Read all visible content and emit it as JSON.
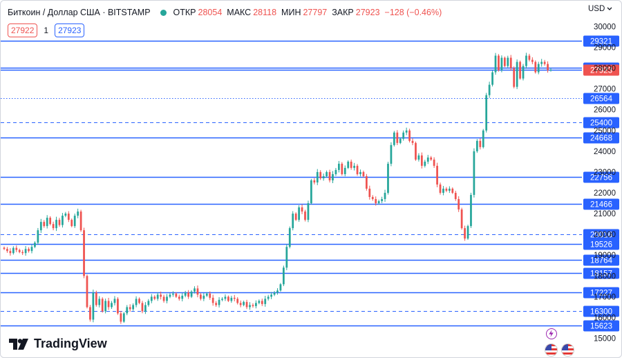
{
  "header": {
    "symbol_title": "Биткоин / Доллар США · BITSTAMP",
    "open_label": "ОТКР",
    "open_value": "28054",
    "high_label": "МАКС",
    "high_value": "28118",
    "low_label": "МИН",
    "low_value": "27797",
    "close_label": "ЗАКР",
    "close_value": "27923",
    "change_value": "−128 (−0.46%)"
  },
  "trade": {
    "sell_price": "27922",
    "spread": "1",
    "buy_price": "27923"
  },
  "axis": {
    "currency": "USD"
  },
  "brand": {
    "name": "TradingView"
  },
  "colors": {
    "up": "#26a69a",
    "down": "#ef5350",
    "level_line": "#2962ff",
    "price_line": "#2962ff"
  },
  "chart_data": {
    "type": "candlestick",
    "ylim": [
      14500,
      30500
    ],
    "y_ticks": [
      "15000",
      "16000",
      "17000",
      "18000",
      "19000",
      "20000",
      "21000",
      "22000",
      "23000",
      "24000",
      "25000",
      "26000",
      "27000",
      "28000",
      "29000",
      "30000"
    ],
    "current_price": "27923",
    "levels": [
      {
        "price": 29321,
        "label": "29321",
        "style": "solid"
      },
      {
        "price": 28003,
        "label": "28003",
        "style": "solid"
      },
      {
        "price": 26564,
        "label": "26564",
        "style": "dotted"
      },
      {
        "price": 25400,
        "label": "25400",
        "style": "dashed"
      },
      {
        "price": 24668,
        "label": "24668",
        "style": "solid"
      },
      {
        "price": 22756,
        "label": "22756",
        "style": "solid"
      },
      {
        "price": 21466,
        "label": "21466",
        "style": "solid"
      },
      {
        "price": 20016,
        "label": "20016",
        "style": "dashed"
      },
      {
        "price": 19526,
        "label": "19526",
        "style": "solid"
      },
      {
        "price": 18764,
        "label": "18764",
        "style": "solid"
      },
      {
        "price": 18157,
        "label": "18157",
        "style": "solid"
      },
      {
        "price": 17227,
        "label": "17227",
        "style": "solid"
      },
      {
        "price": 16300,
        "label": "16300",
        "style": "dashed"
      },
      {
        "price": 15623,
        "label": "15623",
        "style": "solid"
      }
    ],
    "closes": [
      19300,
      19200,
      19100,
      19350,
      19250,
      19150,
      19100,
      19300,
      19200,
      19400,
      19600,
      20200,
      20600,
      20400,
      20800,
      20500,
      20300,
      20700,
      20450,
      20900,
      21000,
      20700,
      20400,
      20900,
      21100,
      20200,
      18000,
      16500,
      15900,
      17200,
      16600,
      16900,
      16300,
      16800,
      16500,
      16700,
      16900,
      16200,
      15800,
      16200,
      16500,
      16400,
      16600,
      16900,
      16700,
      16300,
      16600,
      16800,
      17000,
      16900,
      17100,
      17000,
      16800,
      17000,
      17100,
      17150,
      17000,
      16900,
      17050,
      17200,
      17000,
      17250,
      17400,
      17100,
      16900,
      17050,
      17150,
      16950,
      16700,
      16600,
      16850,
      16900,
      17000,
      16800,
      16950,
      16900,
      16700,
      16600,
      16750,
      16500,
      16600,
      16550,
      16700,
      16800,
      16650,
      16900,
      17000,
      17100,
      17200,
      17300,
      17600,
      18400,
      19400,
      20300,
      21000,
      20700,
      21300,
      21100,
      20700,
      21500,
      22600,
      22500,
      23000,
      22700,
      22800,
      23000,
      22600,
      22900,
      23100,
      23400,
      22900,
      23200,
      23500,
      23200,
      23300,
      22900,
      23000,
      22800,
      22200,
      21800,
      21700,
      21500,
      21600,
      21700,
      22000,
      23400,
      24300,
      24900,
      24400,
      24600,
      24900,
      25000,
      24500,
      24400,
      23600,
      23800,
      23300,
      23500,
      23700,
      23600,
      23300,
      22400,
      22000,
      22200,
      22100,
      22200,
      22000,
      21700,
      21200,
      20300,
      19800,
      20400,
      21900,
      24000,
      24500,
      24200,
      25000,
      26700,
      27200,
      27800,
      28600,
      27900,
      28500,
      28100,
      28500,
      28000,
      27100,
      28300,
      27500,
      28100,
      28600,
      28400,
      28300,
      27800,
      28200,
      28300,
      28200,
      27900,
      27923
    ]
  }
}
